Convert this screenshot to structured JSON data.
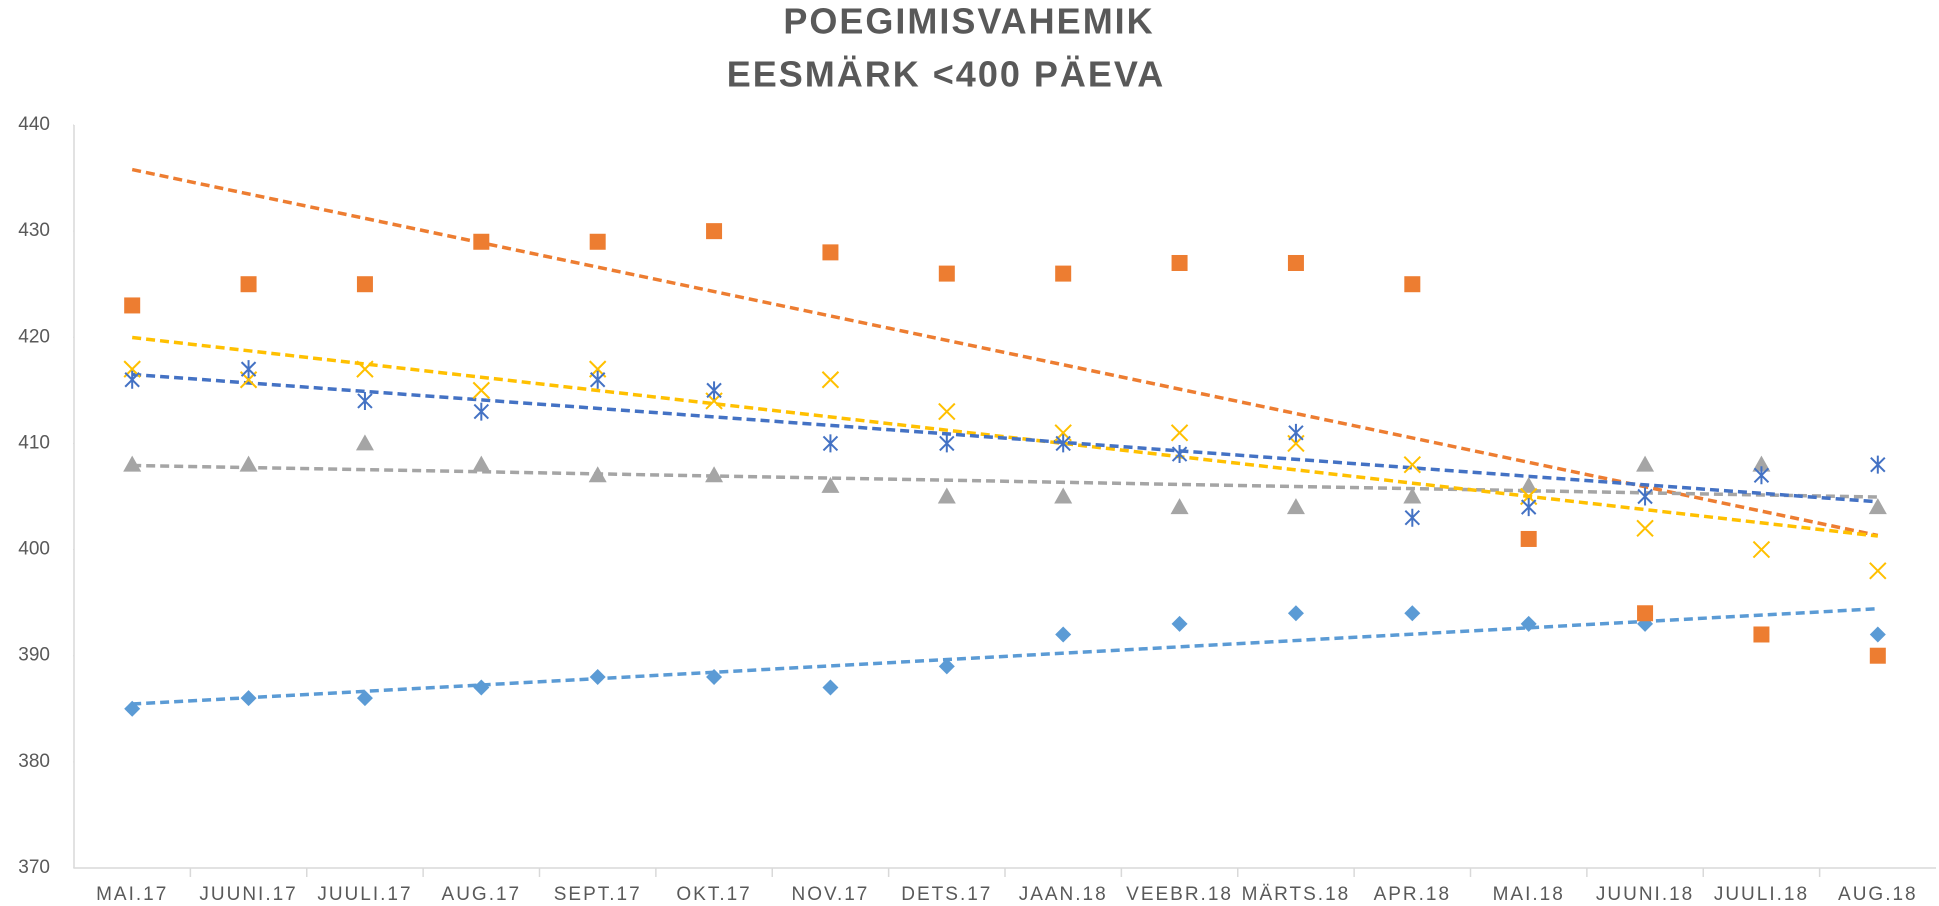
{
  "chart_data": {
    "type": "scatter_trend",
    "title": "POEGIMISVAHEMIK",
    "subtitle": "EESMÄRK <400 PÄEVA",
    "categories": [
      "MAI.17",
      "JUUNI.17",
      "JUULI.17",
      "AUG.17",
      "SEPT.17",
      "OKT.17",
      "NOV.17",
      "DETS.17",
      "JAAN.18",
      "VEEBR.18",
      "MÄRTS.18",
      "APR.18",
      "MAI.18",
      "JUUNI.18",
      "JUULI.18",
      "AUG.18"
    ],
    "ylim": [
      370,
      440
    ],
    "yticks": [
      370,
      380,
      390,
      400,
      410,
      420,
      430,
      440
    ],
    "grid": false,
    "trendline": true,
    "series": [
      {
        "color": "#5b9bd5",
        "marker": "diamond",
        "values": [
          385,
          386,
          386,
          387,
          388,
          388,
          387,
          389,
          392,
          393,
          394,
          394,
          393,
          393,
          392,
          392
        ]
      },
      {
        "color": "#ed7d31",
        "marker": "square",
        "values": [
          423,
          425,
          425,
          429,
          429,
          430,
          428,
          426,
          426,
          427,
          427,
          425,
          401,
          394,
          392,
          390
        ]
      },
      {
        "color": "#a5a5a5",
        "marker": "triangle",
        "values": [
          408,
          408,
          410,
          408,
          407,
          407,
          406,
          405,
          405,
          404,
          404,
          405,
          406,
          408,
          408,
          404
        ]
      },
      {
        "color": "#ffc000",
        "marker": "x",
        "values": [
          417,
          416,
          417,
          415,
          417,
          414,
          416,
          413,
          411,
          411,
          410,
          408,
          405,
          402,
          400,
          398
        ]
      },
      {
        "color": "#4472c4",
        "marker": "asterisk",
        "values": [
          416,
          417,
          414,
          413,
          416,
          415,
          410,
          410,
          410,
          409,
          411,
          403,
          404,
          405,
          407,
          408
        ]
      }
    ]
  }
}
